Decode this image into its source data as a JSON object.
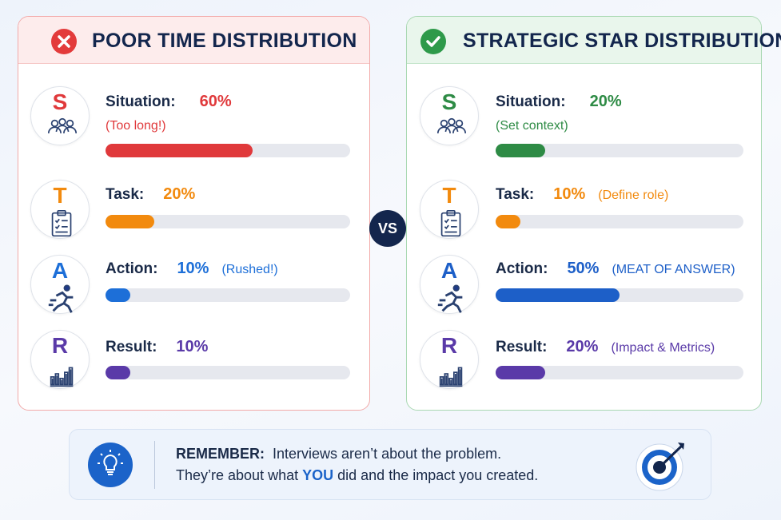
{
  "panels": [
    {
      "title": "POOR TIME DISTRIBUTION",
      "rows": [
        {
          "letter": "S",
          "label": "Situation:",
          "value": 60,
          "value_label": "60%",
          "note": "(Too long!)",
          "color": "#e0393b"
        },
        {
          "letter": "T",
          "label": "Task:",
          "value": 20,
          "value_label": "20%",
          "note": null,
          "color": "#f28a0e"
        },
        {
          "letter": "A",
          "label": "Action:",
          "value": 10,
          "value_label": "10%",
          "note": "(Rushed!)",
          "color": "#1d6fd8"
        },
        {
          "letter": "R",
          "label": "Result:",
          "value": 10,
          "value_label": "10%",
          "note": null,
          "color": "#5a3aa8"
        }
      ]
    },
    {
      "title": "STRATEGIC STAR DISTRIBUTION",
      "rows": [
        {
          "letter": "S",
          "label": "Situation:",
          "value": 20,
          "value_label": "20%",
          "note": "(Set context)",
          "color": "#2e8b45"
        },
        {
          "letter": "T",
          "label": "Task:",
          "value": 10,
          "value_label": "10%",
          "note": "(Define role)",
          "color": "#f28a0e"
        },
        {
          "letter": "A",
          "label": "Action:",
          "value": 50,
          "value_label": "50%",
          "note": "(MEAT OF ANSWER)",
          "color": "#1d5fc8"
        },
        {
          "letter": "R",
          "label": "Result:",
          "value": 20,
          "value_label": "20%",
          "note": "(Impact & Metrics)",
          "color": "#5a3aa8"
        }
      ]
    }
  ],
  "vs": "VS",
  "reminder": {
    "heading": "REMEMBER:",
    "line1": "Interviews aren’t about the problem.",
    "line2_start": "They’re about what",
    "line2_emphasis": "YOU",
    "line2_end": "did and the impact you created."
  }
}
